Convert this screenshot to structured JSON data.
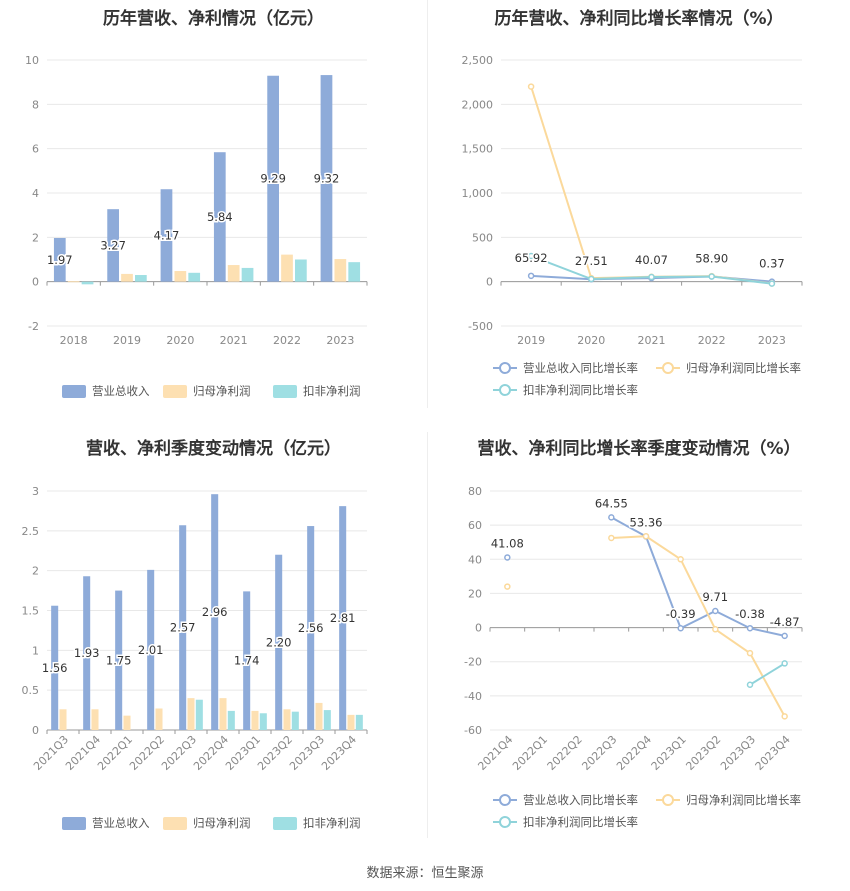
{
  "colors": {
    "revenue": "#8eabd9",
    "net_profit": "#fde0b2",
    "deducted_profit": "#9fdfe3",
    "grid": "#e8e8e8",
    "axis_text": "#888888",
    "rev_line": "#8eabd9",
    "np_line": "#fbd99b",
    "dp_line": "#8fd3da"
  },
  "source": "数据来源：恒生聚源",
  "chart_data": [
    {
      "type": "bar",
      "title": "历年营收、净利情况（亿元）",
      "categories": [
        "2018",
        "2019",
        "2020",
        "2021",
        "2022",
        "2023"
      ],
      "ylim": [
        -2,
        10
      ],
      "yticks": [
        "10",
        "8",
        "6",
        "4",
        "2",
        "0",
        "-2"
      ],
      "ytick_values": [
        10,
        8,
        6,
        4,
        2,
        0,
        -2
      ],
      "series": [
        {
          "name": "营业总收入",
          "values": [
            1.97,
            3.27,
            4.17,
            5.84,
            9.29,
            9.32
          ],
          "labels": [
            "1.97",
            "3.27",
            "4.17",
            "5.84",
            "9.29",
            "9.32"
          ]
        },
        {
          "name": "归母净利润",
          "values": [
            0.02,
            0.35,
            0.48,
            0.75,
            1.22,
            1.02
          ]
        },
        {
          "name": "扣非净利润",
          "values": [
            -0.12,
            0.3,
            0.4,
            0.62,
            1.0,
            0.88
          ]
        }
      ]
    },
    {
      "type": "line",
      "title": "历年营收、净利同比增长率情况（%）",
      "categories": [
        "2019",
        "2020",
        "2021",
        "2022",
        "2023"
      ],
      "ylim": [
        -500,
        2500
      ],
      "yticks": [
        "2,500",
        "2,000",
        "1,500",
        "1,000",
        "500",
        "0",
        "-500"
      ],
      "ytick_values": [
        2500,
        2000,
        1500,
        1000,
        500,
        0,
        -500
      ],
      "series": [
        {
          "name": "营业总收入同比增长率",
          "values": [
            65.92,
            27.51,
            40.07,
            58.9,
            0.37
          ],
          "labels": [
            "65.92",
            "27.51",
            "40.07",
            "58.90",
            "0.37"
          ]
        },
        {
          "name": "归母净利润同比增长率",
          "values": [
            2200,
            40,
            55,
            62,
            -20
          ]
        },
        {
          "name": "扣非净利润同比增长率",
          "values": [
            290,
            30,
            52,
            58,
            -22
          ]
        }
      ]
    },
    {
      "type": "bar",
      "title": "营收、净利季度变动情况（亿元）",
      "categories": [
        "2021Q3",
        "2021Q4",
        "2022Q1",
        "2022Q2",
        "2022Q3",
        "2022Q4",
        "2023Q1",
        "2023Q2",
        "2023Q3",
        "2023Q4"
      ],
      "ylim": [
        0,
        3
      ],
      "yticks": [
        "3",
        "2.5",
        "2",
        "1.5",
        "1",
        "0.5",
        "0"
      ],
      "ytick_values": [
        3,
        2.5,
        2,
        1.5,
        1,
        0.5,
        0
      ],
      "series": [
        {
          "name": "营业总收入",
          "values": [
            1.56,
            1.93,
            1.75,
            2.01,
            2.57,
            2.96,
            1.74,
            2.2,
            2.56,
            2.81
          ],
          "labels": [
            "1.56",
            "1.93",
            "1.75",
            "2.01",
            "2.57",
            "2.96",
            "1.74",
            "2.20",
            "2.56",
            "2.81"
          ]
        },
        {
          "name": "归母净利润",
          "values": [
            0.26,
            0.26,
            0.18,
            0.27,
            0.4,
            0.4,
            0.24,
            0.26,
            0.34,
            0.19
          ]
        },
        {
          "name": "扣非净利润",
          "values": [
            null,
            null,
            null,
            null,
            0.38,
            0.24,
            0.21,
            0.23,
            0.25,
            0.19
          ]
        }
      ]
    },
    {
      "type": "line",
      "title": "营收、净利同比增长率季度变动情况（%）",
      "categories": [
        "2021Q4",
        "2022Q1",
        "2022Q2",
        "2022Q3",
        "2022Q4",
        "2023Q1",
        "2023Q2",
        "2023Q3",
        "2023Q4"
      ],
      "ylim": [
        -60,
        80
      ],
      "yticks": [
        "80",
        "60",
        "40",
        "20",
        "0",
        "-20",
        "-40",
        "-60"
      ],
      "ytick_values": [
        80,
        60,
        40,
        20,
        0,
        -20,
        -40,
        -60
      ],
      "series": [
        {
          "name": "营业总收入同比增长率",
          "values": [
            41.08,
            null,
            null,
            64.55,
            53.36,
            -0.39,
            9.71,
            -0.38,
            -4.87
          ],
          "labels": [
            "41.08",
            "",
            "",
            "64.55",
            "53.36",
            "-0.39",
            "9.71",
            "-0.38",
            "-4.87"
          ]
        },
        {
          "name": "归母净利润同比增长率",
          "values": [
            24,
            null,
            null,
            52.5,
            53.5,
            40,
            -1,
            -15,
            -52
          ]
        },
        {
          "name": "扣非净利润同比增长率",
          "values": [
            null,
            null,
            null,
            null,
            null,
            null,
            null,
            -33.5,
            -21
          ]
        }
      ]
    }
  ]
}
